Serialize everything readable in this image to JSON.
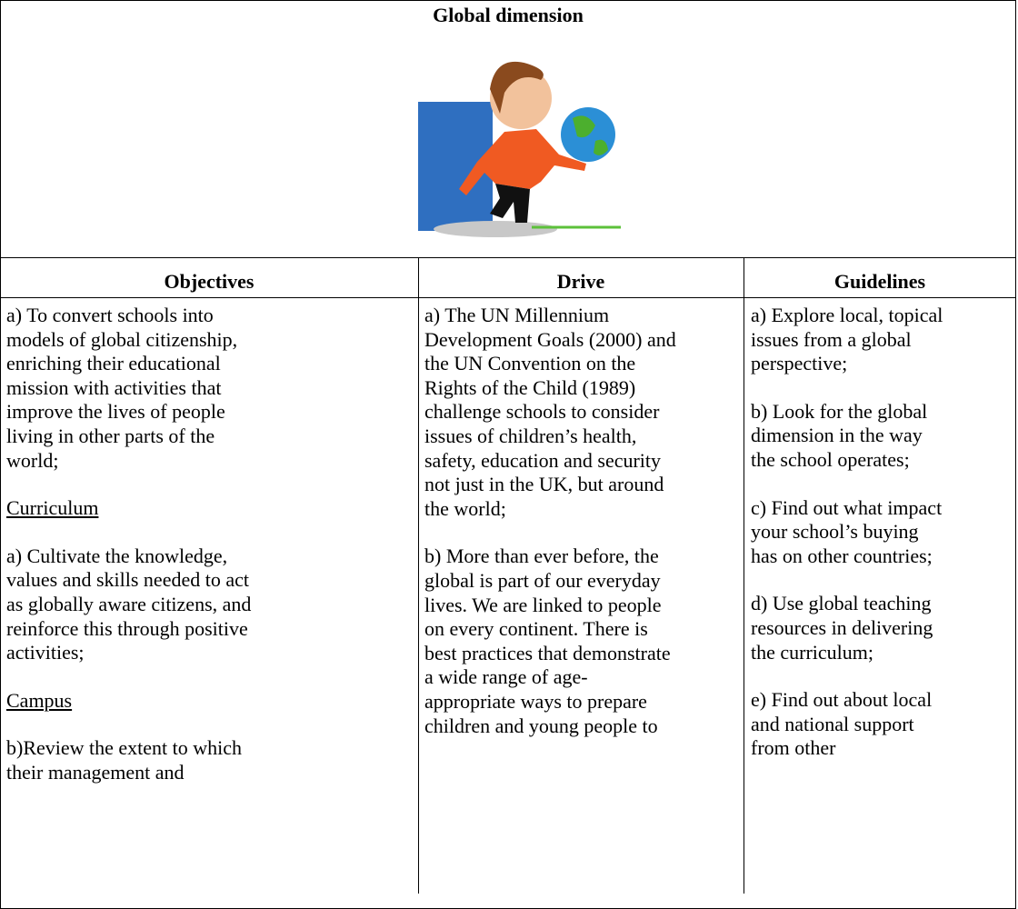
{
  "title": "Global dimension",
  "table": {
    "headers": [
      "Objectives",
      "Drive",
      "Guidelines"
    ],
    "columns": [
      [
        {
          "lines": [
            "a) To convert schools into",
            "models of global citizenship,",
            "enriching their educational",
            "mission with activities that",
            "improve the lives of people",
            "living in other parts of the",
            "world;"
          ]
        },
        {
          "lines": [
            "Curriculum"
          ],
          "underline": true
        },
        {
          "lines": [
            "a) Cultivate the knowledge,",
            "values and skills needed to act",
            "as globally aware citizens, and",
            "reinforce this through positive",
            "activities;"
          ]
        },
        {
          "lines": [
            "Campus"
          ],
          "underline": true
        },
        {
          "lines": [
            "b)Review the extent to which",
            "their management and"
          ]
        }
      ],
      [
        {
          "lines": [
            "a) The UN Millennium",
            "Development Goals (2000) and",
            "the UN Convention on the",
            "Rights of the Child (1989)",
            "challenge schools to consider",
            "issues of children’s health,",
            "safety, education and security",
            "not just in the UK, but around",
            "the world;"
          ]
        },
        {
          "lines": [
            "b) More than ever before, the",
            "global is part of our everyday",
            "lives. We are linked to people",
            "on every continent. There is",
            "best practices that demonstrate",
            "a wide range of age-",
            "appropriate ways to prepare",
            "children and young people to"
          ]
        }
      ],
      [
        {
          "lines": [
            "a) Explore local, topical",
            "issues from a global",
            "perspective;"
          ]
        },
        {
          "lines": [
            "b) Look for the global",
            "dimension in the way",
            "the school operates;"
          ]
        },
        {
          "lines": [
            "c) Find out what impact",
            "your school’s buying",
            "has on other countries;"
          ]
        },
        {
          "lines": [
            "d) Use global teaching",
            "resources in delivering",
            "the curriculum;"
          ]
        },
        {
          "lines": [
            "e) Find out about local",
            "and national support",
            "from other"
          ]
        }
      ]
    ]
  }
}
